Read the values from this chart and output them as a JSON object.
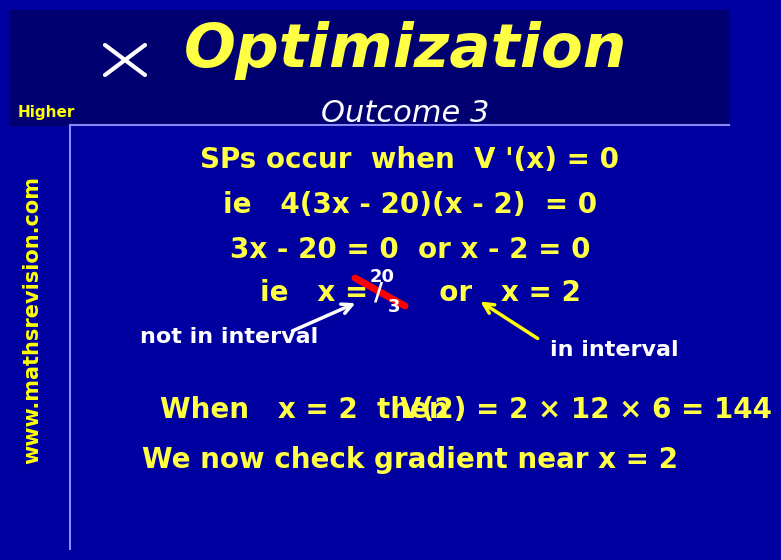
{
  "bg_color": "#0000A0",
  "header_bg": "#000080",
  "title_text": "Optimization",
  "title_color": "#FFFF44",
  "outcome_text": "Outcome 3",
  "outcome_color": "#FFFFFF",
  "higher_text": "Higher",
  "higher_color": "#FFFF00",
  "website_text": "www.mathsrevision.com",
  "website_color": "#FFFF00",
  "line1": "SPs occur  when  V '(x) = 0",
  "line2": "ie   4(3x - 20)(x - 2)  = 0",
  "line3": "3x - 20 = 0  or x - 2 = 0",
  "not_in_interval": "not in interval",
  "in_interval": "in interval",
  "line5_a": "When   x = 2  then",
  "line5_b": "V(2) = 2 × 12 × 6 = 144",
  "line6": "We now check gradient near x = 2",
  "text_color": "#FFFF44",
  "white_color": "#FFFFFF",
  "font_size_title": 44,
  "font_size_outcome": 22,
  "font_size_main": 20,
  "font_size_website": 15
}
